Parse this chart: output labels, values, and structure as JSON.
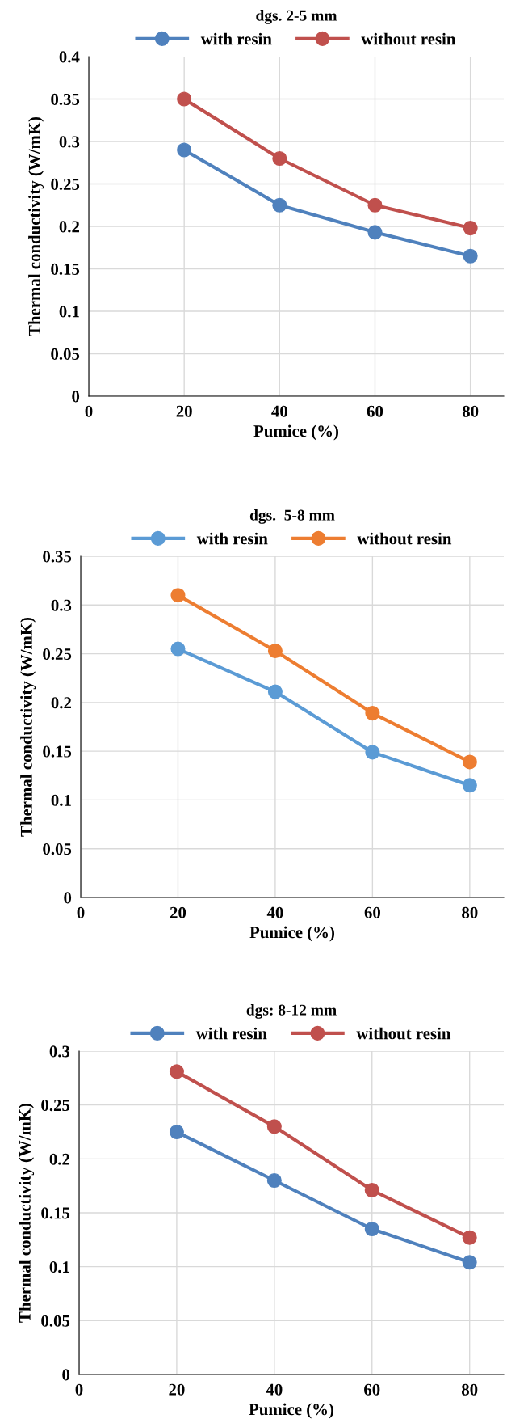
{
  "chart_data": [
    {
      "type": "line",
      "title": "dgs. 2-5 mm",
      "xlabel": "Pumice (%)",
      "ylabel": "Thermal conductivity (W/mK)",
      "x": [
        20,
        40,
        60,
        80
      ],
      "xlim": [
        0,
        87
      ],
      "xticks": [
        0,
        20,
        40,
        60,
        80
      ],
      "ylim": [
        0,
        0.4
      ],
      "yticks": [
        0,
        0.05,
        0.1,
        0.15,
        0.2,
        0.25,
        0.3,
        0.35,
        0.4
      ],
      "grid": true,
      "legend": "top",
      "marker": "circle",
      "line_style": "solid",
      "series": [
        {
          "name": "with resin",
          "color": "#4f81bd",
          "values": [
            0.29,
            0.225,
            0.193,
            0.165
          ]
        },
        {
          "name": "without resin",
          "color": "#c0504d",
          "values": [
            0.35,
            0.28,
            0.225,
            0.198
          ]
        }
      ]
    },
    {
      "type": "line",
      "title": "dgs.  5-8 mm",
      "xlabel": "Pumice (%)",
      "ylabel": "Thermal conductivity (W/mK)",
      "x": [
        20,
        40,
        60,
        80
      ],
      "xlim": [
        0,
        87
      ],
      "xticks": [
        0,
        20,
        40,
        60,
        80
      ],
      "ylim": [
        0,
        0.35
      ],
      "yticks": [
        0,
        0.05,
        0.1,
        0.15,
        0.2,
        0.25,
        0.3,
        0.35
      ],
      "grid": true,
      "legend": "top",
      "marker": "circle",
      "line_style": "solid",
      "series": [
        {
          "name": "with resin",
          "color": "#5b9bd5",
          "values": [
            0.255,
            0.211,
            0.149,
            0.115
          ]
        },
        {
          "name": "without resin",
          "color": "#ed7d31",
          "values": [
            0.31,
            0.253,
            0.189,
            0.139
          ]
        }
      ]
    },
    {
      "type": "line",
      "title": "dgs: 8-12 mm",
      "xlabel": "Pumice (%)",
      "ylabel": "Thermal conductivity (W/mK)",
      "x": [
        20,
        40,
        60,
        80
      ],
      "xlim": [
        0,
        87
      ],
      "xticks": [
        0,
        20,
        40,
        60,
        80
      ],
      "ylim": [
        0,
        0.3
      ],
      "yticks": [
        0,
        0.05,
        0.1,
        0.15,
        0.2,
        0.25,
        0.3
      ],
      "grid": true,
      "legend": "top",
      "marker": "circle",
      "line_style": "solid",
      "series": [
        {
          "name": "with resin",
          "color": "#4f81bd",
          "values": [
            0.225,
            0.18,
            0.135,
            0.104
          ]
        },
        {
          "name": "without resin",
          "color": "#c0504d",
          "values": [
            0.281,
            0.23,
            0.171,
            0.127
          ]
        }
      ]
    }
  ]
}
